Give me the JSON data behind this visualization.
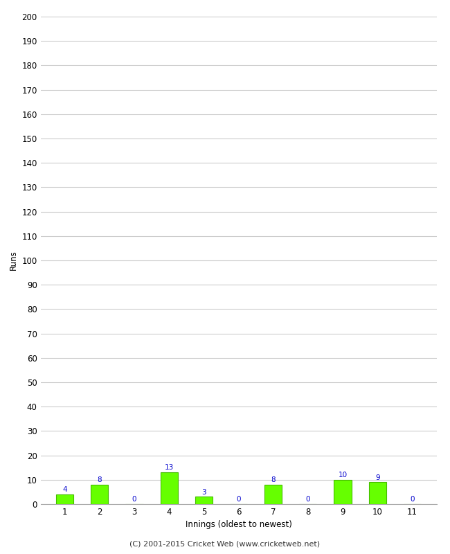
{
  "xlabel": "Innings (oldest to newest)",
  "ylabel": "Runs",
  "categories": [
    "1",
    "2",
    "3",
    "4",
    "5",
    "6",
    "7",
    "8",
    "9",
    "10",
    "11"
  ],
  "values": [
    4,
    8,
    0,
    13,
    3,
    0,
    8,
    0,
    10,
    9,
    0
  ],
  "bar_color": "#66ff00",
  "bar_edge_color": "#44bb00",
  "label_color": "#0000cc",
  "ylim": [
    0,
    200
  ],
  "yticks": [
    0,
    10,
    20,
    30,
    40,
    50,
    60,
    70,
    80,
    90,
    100,
    110,
    120,
    130,
    140,
    150,
    160,
    170,
    180,
    190,
    200
  ],
  "background_color": "#ffffff",
  "grid_color": "#cccccc",
  "footer": "(C) 2001-2015 Cricket Web (www.cricketweb.net)",
  "label_fontsize": 7.5,
  "axis_fontsize": 8.5,
  "footer_fontsize": 8
}
